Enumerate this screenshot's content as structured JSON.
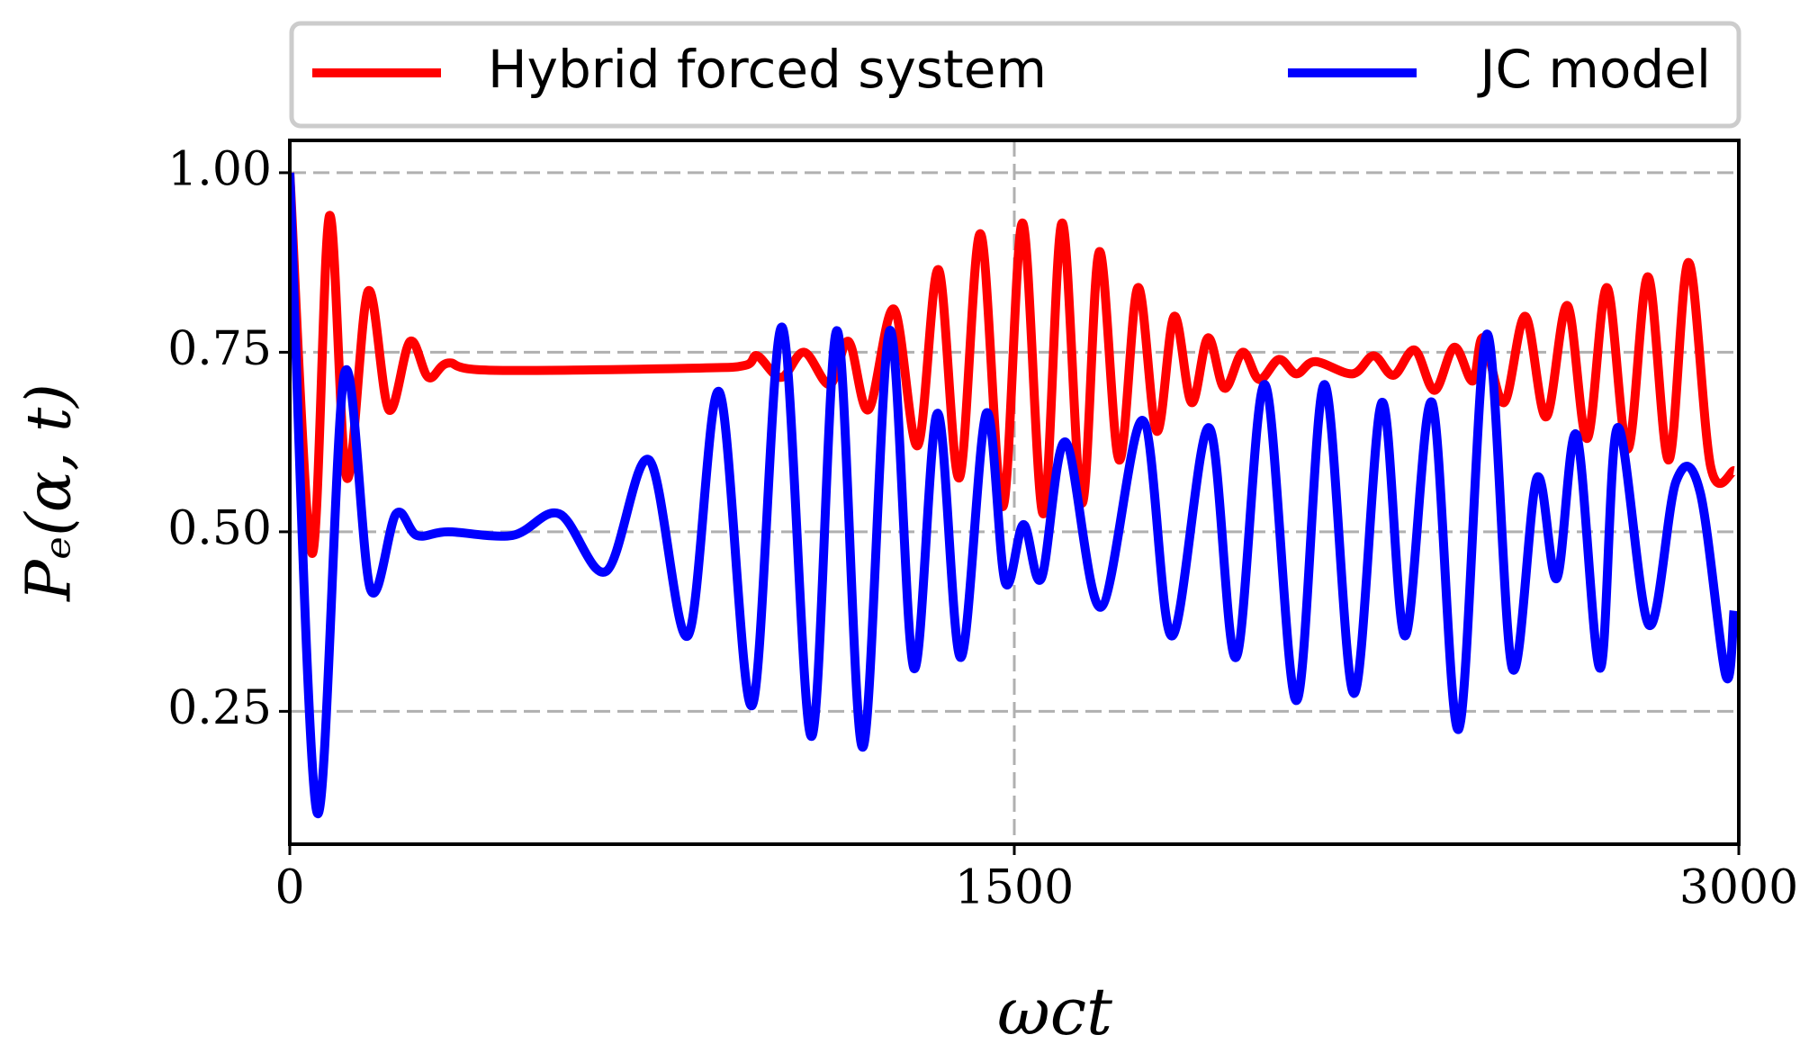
{
  "chart_data": {
    "type": "line",
    "xlabel": "ωct",
    "ylabel": "Pₑ(α, t)",
    "xlim": [
      0,
      3000
    ],
    "xticks": [
      0,
      1500,
      3000
    ],
    "ylim": [
      0.065,
      1.045
    ],
    "yticks": [
      {
        "value": 0.25,
        "label": "0.25"
      },
      {
        "value": 0.5,
        "label": "0.50"
      },
      {
        "value": 0.75,
        "label": "0.75"
      },
      {
        "value": 1.0,
        "label": "1.00"
      }
    ],
    "grid": true,
    "legend": "top",
    "series": [
      {
        "name": "Hybrid forced system",
        "color": "#ff0000",
        "x": [
          0,
          46,
          82,
          118,
          162,
          205,
          249,
          287,
          328,
          413,
          848,
          944,
          968,
          1017,
          1065,
          1118,
          1157,
          1198,
          1251,
          1300,
          1343,
          1386,
          1430,
          1476,
          1517,
          1560,
          1599,
          1640,
          1676,
          1717,
          1756,
          1795,
          1831,
          1867,
          1901,
          1935,
          1973,
          2007,
          2048,
          2084,
          2123,
          2200,
          2244,
          2285,
          2329,
          2370,
          2411,
          2449,
          2471,
          2514,
          2558,
          2601,
          2645,
          2686,
          2727,
          2770,
          2812,
          2855,
          2896,
          2942,
          2990
        ],
        "values": [
          1.0,
          0.47,
          0.94,
          0.575,
          0.835,
          0.67,
          0.765,
          0.715,
          0.735,
          0.725,
          0.728,
          0.732,
          0.745,
          0.715,
          0.75,
          0.705,
          0.765,
          0.67,
          0.81,
          0.62,
          0.865,
          0.575,
          0.915,
          0.535,
          0.93,
          0.525,
          0.93,
          0.54,
          0.89,
          0.6,
          0.84,
          0.64,
          0.8,
          0.68,
          0.77,
          0.7,
          0.75,
          0.712,
          0.74,
          0.72,
          0.737,
          0.72,
          0.745,
          0.718,
          0.753,
          0.697,
          0.757,
          0.71,
          0.77,
          0.68,
          0.8,
          0.66,
          0.815,
          0.63,
          0.84,
          0.615,
          0.855,
          0.6,
          0.875,
          0.59,
          0.585
        ]
      },
      {
        "name": "JC model",
        "color": "#0000ff",
        "x": [
          0,
          56,
          113,
          167,
          220,
          263,
          328,
          461,
          558,
          655,
          744,
          824,
          889,
          957,
          1019,
          1080,
          1133,
          1186,
          1242,
          1292,
          1341,
          1389,
          1442,
          1481,
          1519,
          1556,
          1606,
          1679,
          1766,
          1826,
          1903,
          1959,
          2019,
          2084,
          2142,
          2203,
          2261,
          2309,
          2365,
          2420,
          2478,
          2531,
          2582,
          2623,
          2664,
          2713,
          2749,
          2814,
          2870,
          2920,
          2973,
          2990
        ],
        "values": [
          1.0,
          0.11,
          0.72,
          0.42,
          0.525,
          0.495,
          0.5,
          0.495,
          0.525,
          0.445,
          0.6,
          0.355,
          0.695,
          0.258,
          0.785,
          0.215,
          0.78,
          0.2,
          0.78,
          0.31,
          0.665,
          0.325,
          0.665,
          0.43,
          0.51,
          0.435,
          0.625,
          0.395,
          0.655,
          0.355,
          0.645,
          0.325,
          0.705,
          0.265,
          0.705,
          0.275,
          0.68,
          0.355,
          0.68,
          0.225,
          0.775,
          0.31,
          0.575,
          0.435,
          0.635,
          0.31,
          0.645,
          0.37,
          0.57,
          0.555,
          0.3,
          0.39
        ]
      }
    ]
  }
}
